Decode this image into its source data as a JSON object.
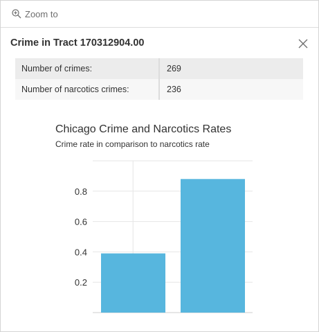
{
  "action_bar": {
    "zoom_label": "Zoom to"
  },
  "popup": {
    "title": "Crime in Tract 170312904.00"
  },
  "attributes": [
    {
      "key": "Number of crimes:",
      "value": "269"
    },
    {
      "key": "Number of narcotics crimes:",
      "value": "236"
    }
  ],
  "chart_data": {
    "type": "bar",
    "title": "Chicago Crime and Narcotics Rates",
    "subtitle": "Crime rate in comparison to narcotics rate",
    "categories": [
      "",
      ""
    ],
    "values": [
      0.39,
      0.88
    ],
    "ylim": [
      0,
      1.0
    ],
    "yticks": [
      0.2,
      0.4,
      0.6,
      0.8
    ],
    "ytick_labels": [
      "0.2",
      "0.4",
      "0.6",
      "0.8"
    ],
    "grid": true,
    "bar_color": "#57b6de"
  }
}
